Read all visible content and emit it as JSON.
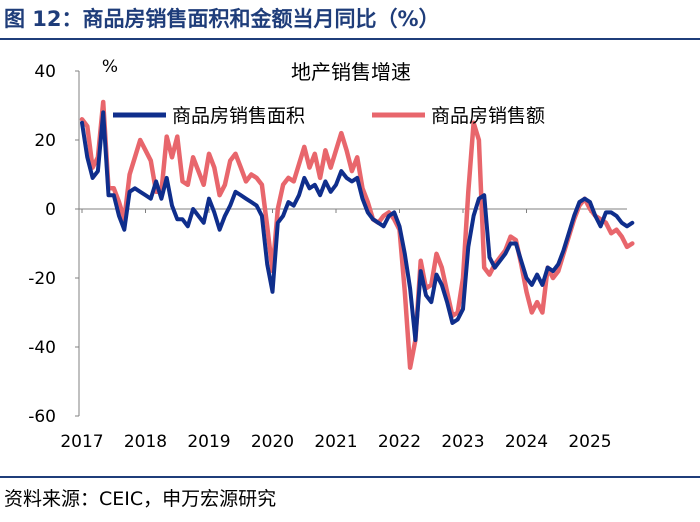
{
  "header": {
    "title": "图 12：商品房销售面积和金额当月同比（%）"
  },
  "footer": {
    "source": "资料来源：CEIC，申万宏源研究"
  },
  "chart_data": {
    "type": "line",
    "title": "地产销售增速",
    "ylabel": "%",
    "xlabel": "",
    "ylim": [
      -60,
      40
    ],
    "y_ticks": [
      40,
      20,
      0,
      -20,
      -40,
      -60
    ],
    "x_tick_labels": [
      "2017",
      "2018",
      "2019",
      "2020",
      "2021",
      "2022",
      "2023",
      "2024",
      "2025"
    ],
    "x_start": 2017.0,
    "legend_position": "top",
    "colors": {
      "area": "#0f2e8c",
      "amount": "#e8666c"
    },
    "series": [
      {
        "name": "商品房销售面积",
        "key": "area",
        "values": [
          25,
          15,
          9,
          11,
          28,
          4,
          4,
          -2,
          -6,
          5,
          6,
          5,
          4,
          3,
          8,
          3,
          9,
          1,
          -3,
          -3,
          -5,
          0,
          -2,
          -4,
          3,
          -1,
          -6,
          -2,
          1,
          5,
          4,
          3,
          2,
          1,
          -2,
          -16,
          -24,
          -4,
          -2,
          2,
          1,
          4,
          9,
          6,
          7,
          4,
          8,
          5,
          7,
          11,
          9,
          8,
          9,
          3,
          -1,
          -3,
          -4,
          -5,
          -2,
          -1,
          -5,
          -13,
          -23,
          -38,
          -18,
          -25,
          -27,
          -19,
          -22,
          -27,
          -33,
          -32,
          -29,
          -11,
          -2,
          3,
          4,
          -14,
          -17,
          -15,
          -13,
          -10,
          -10,
          -15,
          -20,
          -22,
          -19,
          -22,
          -17,
          -18,
          -16,
          -12,
          -7,
          -2,
          2,
          3,
          2,
          -2,
          -5,
          -1,
          -1,
          -2,
          -4,
          -5,
          -4
        ]
      },
      {
        "name": "商品房销售额",
        "key": "amount",
        "values": [
          26,
          24,
          12,
          15,
          31,
          6,
          6,
          2,
          -3,
          10,
          15,
          20,
          17,
          14,
          5,
          5,
          21,
          15,
          21,
          8,
          7,
          15,
          11,
          7,
          16,
          12,
          4,
          7,
          14,
          16,
          12,
          8,
          10,
          9,
          7,
          -5,
          -18,
          0,
          7,
          9,
          8,
          13,
          18,
          12,
          16,
          9,
          17,
          12,
          17,
          22,
          17,
          11,
          15,
          6,
          2,
          -3,
          -4,
          -2,
          -1,
          -3,
          -6,
          -24,
          -46,
          -38,
          -15,
          -23,
          -22,
          -13,
          -17,
          -24,
          -31,
          -30,
          -20,
          5,
          25,
          20,
          -17,
          -19,
          -16,
          -14,
          -12,
          -8,
          -9,
          -16,
          -24,
          -30,
          -27,
          -30,
          -17,
          -20,
          -18,
          -13,
          -8,
          -3,
          1,
          3,
          0,
          -2,
          -3,
          -4,
          -7,
          -6,
          -8,
          -11,
          -10
        ]
      }
    ]
  }
}
